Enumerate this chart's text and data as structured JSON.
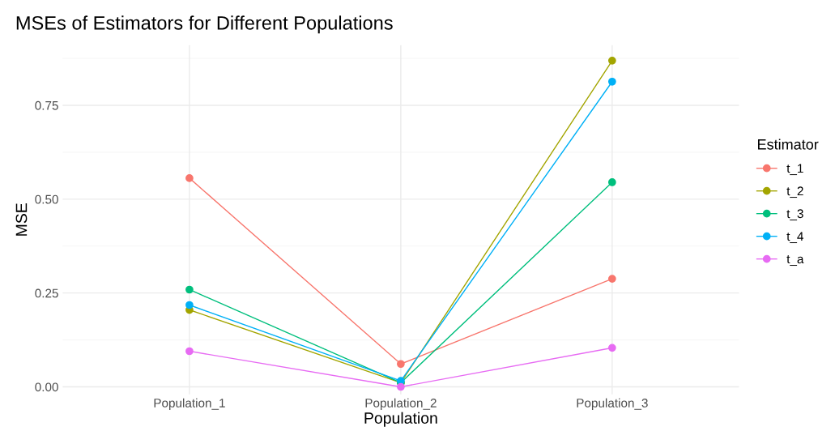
{
  "chart_data": {
    "type": "line",
    "title": "MSEs of Estimators for Different Populations",
    "xlabel": "Population",
    "ylabel": "MSE",
    "legend_title": "Estimator",
    "categories": [
      "Population_1",
      "Population_2",
      "Population_3"
    ],
    "series": [
      {
        "name": "t_1",
        "color": "#f8766d",
        "values": [
          0.556,
          0.061,
          0.288
        ]
      },
      {
        "name": "t_2",
        "color": "#a3a500",
        "values": [
          0.205,
          0.011,
          0.869
        ]
      },
      {
        "name": "t_3",
        "color": "#00bf7d",
        "values": [
          0.259,
          0.011,
          0.545
        ]
      },
      {
        "name": "t_4",
        "color": "#00b0f6",
        "values": [
          0.218,
          0.016,
          0.813
        ]
      },
      {
        "name": "t_a",
        "color": "#e76bf3",
        "values": [
          0.095,
          0.0,
          0.104
        ]
      }
    ],
    "ylim": [
      -0.02,
      0.91
    ],
    "yticks": [
      {
        "value": 0,
        "label": "0.00"
      },
      {
        "value": 0.25,
        "label": "0.25"
      },
      {
        "value": 0.5,
        "label": "0.50"
      },
      {
        "value": 0.75,
        "label": "0.75"
      }
    ],
    "grid": true,
    "legend": "right",
    "marker": "circle",
    "line_style": "solid"
  }
}
